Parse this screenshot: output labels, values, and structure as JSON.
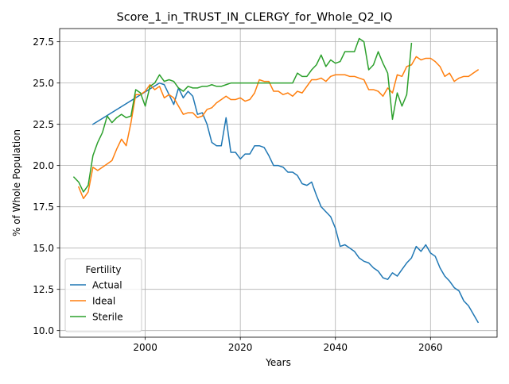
{
  "chart_data": {
    "type": "line",
    "title": "Score_1_in_TRUST_IN_CLERGY_for_Whole_Q2_IQ",
    "xlabel": "Years",
    "ylabel": "% of Whole Population",
    "xlim": [
      1982,
      2074
    ],
    "ylim": [
      9.6,
      28.3
    ],
    "x_ticks": [
      2000,
      2020,
      2040,
      2060
    ],
    "y_ticks": [
      10.0,
      12.5,
      15.0,
      17.5,
      20.0,
      22.5,
      25.0,
      27.5
    ],
    "x_tick_labels": [
      "2000",
      "2020",
      "2040",
      "2060"
    ],
    "y_tick_labels": [
      "10.0",
      "12.5",
      "15.0",
      "17.5",
      "20.0",
      "22.5",
      "25.0",
      "27.5"
    ],
    "grid": true,
    "legend": {
      "title": "Fertility",
      "placement": "lower-left"
    },
    "series": [
      {
        "name": "Actual",
        "color": "#1f77b4",
        "points": [
          [
            1989,
            22.5
          ],
          [
            2003,
            25.0
          ],
          [
            2004,
            24.9
          ],
          [
            2005,
            24.3
          ],
          [
            2006,
            23.7
          ],
          [
            2007,
            24.7
          ],
          [
            2008,
            24.1
          ],
          [
            2009,
            24.5
          ],
          [
            2010,
            24.2
          ],
          [
            2011,
            23.1
          ],
          [
            2012,
            23.2
          ],
          [
            2013,
            22.5
          ],
          [
            2014,
            21.4
          ],
          [
            2015,
            21.2
          ],
          [
            2016,
            21.2
          ],
          [
            2017,
            22.9
          ],
          [
            2018,
            20.8
          ],
          [
            2019,
            20.8
          ],
          [
            2020,
            20.4
          ],
          [
            2021,
            20.7
          ],
          [
            2022,
            20.7
          ],
          [
            2023,
            21.2
          ],
          [
            2024,
            21.2
          ],
          [
            2025,
            21.1
          ],
          [
            2026,
            20.6
          ],
          [
            2027,
            20.0
          ],
          [
            2028,
            20.0
          ],
          [
            2029,
            19.9
          ],
          [
            2030,
            19.6
          ],
          [
            2031,
            19.6
          ],
          [
            2032,
            19.4
          ],
          [
            2033,
            18.9
          ],
          [
            2034,
            18.8
          ],
          [
            2035,
            19.0
          ],
          [
            2036,
            18.2
          ],
          [
            2037,
            17.5
          ],
          [
            2038,
            17.2
          ],
          [
            2039,
            16.9
          ],
          [
            2040,
            16.2
          ],
          [
            2041,
            15.1
          ],
          [
            2042,
            15.2
          ],
          [
            2043,
            15.0
          ],
          [
            2044,
            14.8
          ],
          [
            2045,
            14.4
          ],
          [
            2046,
            14.2
          ],
          [
            2047,
            14.1
          ],
          [
            2048,
            13.8
          ],
          [
            2049,
            13.6
          ],
          [
            2050,
            13.2
          ],
          [
            2051,
            13.1
          ],
          [
            2052,
            13.5
          ],
          [
            2053,
            13.3
          ],
          [
            2054,
            13.7
          ],
          [
            2055,
            14.1
          ],
          [
            2056,
            14.4
          ],
          [
            2057,
            15.1
          ],
          [
            2058,
            14.8
          ],
          [
            2059,
            15.2
          ],
          [
            2060,
            14.7
          ],
          [
            2061,
            14.5
          ],
          [
            2062,
            13.8
          ],
          [
            2063,
            13.3
          ],
          [
            2064,
            13.0
          ],
          [
            2065,
            12.6
          ],
          [
            2066,
            12.4
          ],
          [
            2067,
            11.8
          ],
          [
            2068,
            11.5
          ],
          [
            2069,
            11.0
          ],
          [
            2070,
            10.5
          ]
        ]
      },
      {
        "name": "Ideal",
        "color": "#ff7f0e",
        "points": [
          [
            1986,
            18.7
          ],
          [
            1987,
            18.0
          ],
          [
            1988,
            18.4
          ],
          [
            1989,
            19.9
          ],
          [
            1990,
            19.7
          ],
          [
            1991,
            19.9
          ],
          [
            1992,
            20.1
          ],
          [
            1993,
            20.3
          ],
          [
            1994,
            21.0
          ],
          [
            1995,
            21.6
          ],
          [
            1996,
            21.2
          ],
          [
            1997,
            22.6
          ],
          [
            1998,
            24.3
          ],
          [
            1999,
            24.3
          ],
          [
            2000,
            24.5
          ],
          [
            2001,
            24.9
          ],
          [
            2002,
            24.6
          ],
          [
            2003,
            24.8
          ],
          [
            2004,
            24.1
          ],
          [
            2005,
            24.3
          ],
          [
            2006,
            24.1
          ],
          [
            2007,
            23.6
          ],
          [
            2008,
            23.1
          ],
          [
            2009,
            23.2
          ],
          [
            2010,
            23.2
          ],
          [
            2011,
            22.9
          ],
          [
            2012,
            23.0
          ],
          [
            2013,
            23.4
          ],
          [
            2014,
            23.5
          ],
          [
            2015,
            23.8
          ],
          [
            2016,
            24.0
          ],
          [
            2017,
            24.2
          ],
          [
            2018,
            24.0
          ],
          [
            2019,
            24.0
          ],
          [
            2020,
            24.1
          ],
          [
            2021,
            23.9
          ],
          [
            2022,
            24.0
          ],
          [
            2023,
            24.4
          ],
          [
            2024,
            25.2
          ],
          [
            2025,
            25.1
          ],
          [
            2026,
            25.1
          ],
          [
            2027,
            24.5
          ],
          [
            2028,
            24.5
          ],
          [
            2029,
            24.3
          ],
          [
            2030,
            24.4
          ],
          [
            2031,
            24.2
          ],
          [
            2032,
            24.5
          ],
          [
            2033,
            24.4
          ],
          [
            2034,
            24.8
          ],
          [
            2035,
            25.2
          ],
          [
            2036,
            25.2
          ],
          [
            2037,
            25.3
          ],
          [
            2038,
            25.1
          ],
          [
            2039,
            25.4
          ],
          [
            2040,
            25.5
          ],
          [
            2041,
            25.5
          ],
          [
            2042,
            25.5
          ],
          [
            2043,
            25.4
          ],
          [
            2044,
            25.4
          ],
          [
            2045,
            25.3
          ],
          [
            2046,
            25.2
          ],
          [
            2047,
            24.6
          ],
          [
            2048,
            24.6
          ],
          [
            2049,
            24.5
          ],
          [
            2050,
            24.2
          ],
          [
            2051,
            24.7
          ],
          [
            2052,
            24.4
          ],
          [
            2053,
            25.5
          ],
          [
            2054,
            25.4
          ],
          [
            2055,
            26.0
          ],
          [
            2056,
            26.1
          ],
          [
            2057,
            26.6
          ],
          [
            2058,
            26.4
          ],
          [
            2059,
            26.5
          ],
          [
            2060,
            26.5
          ],
          [
            2061,
            26.3
          ],
          [
            2062,
            26.0
          ],
          [
            2063,
            25.4
          ],
          [
            2064,
            25.6
          ],
          [
            2065,
            25.1
          ],
          [
            2066,
            25.3
          ],
          [
            2067,
            25.4
          ],
          [
            2068,
            25.4
          ],
          [
            2069,
            25.6
          ],
          [
            2070,
            25.8
          ]
        ]
      },
      {
        "name": "Sterile",
        "color": "#2ca02c",
        "points": [
          [
            1985,
            19.3
          ],
          [
            1986,
            19.0
          ],
          [
            1987,
            18.4
          ],
          [
            1988,
            18.8
          ],
          [
            1989,
            20.6
          ],
          [
            1990,
            21.4
          ],
          [
            1991,
            22.0
          ],
          [
            1992,
            23.0
          ],
          [
            1993,
            22.6
          ],
          [
            1994,
            22.9
          ],
          [
            1995,
            23.1
          ],
          [
            1996,
            22.9
          ],
          [
            1997,
            23.0
          ],
          [
            1998,
            24.6
          ],
          [
            1999,
            24.4
          ],
          [
            2000,
            23.6
          ],
          [
            2001,
            24.8
          ],
          [
            2002,
            25.0
          ],
          [
            2003,
            25.5
          ],
          [
            2004,
            25.1
          ],
          [
            2005,
            25.2
          ],
          [
            2006,
            25.1
          ],
          [
            2007,
            24.7
          ],
          [
            2008,
            24.5
          ],
          [
            2009,
            24.8
          ],
          [
            2010,
            24.7
          ],
          [
            2011,
            24.7
          ],
          [
            2012,
            24.8
          ],
          [
            2013,
            24.8
          ],
          [
            2014,
            24.9
          ],
          [
            2015,
            24.8
          ],
          [
            2016,
            24.8
          ],
          [
            2017,
            24.9
          ],
          [
            2018,
            25.0
          ],
          [
            2019,
            25.0
          ],
          [
            2020,
            25.0
          ],
          [
            2021,
            25.0
          ],
          [
            2022,
            25.0
          ],
          [
            2023,
            25.0
          ],
          [
            2024,
            25.0
          ],
          [
            2025,
            25.0
          ],
          [
            2026,
            25.0
          ],
          [
            2027,
            25.0
          ],
          [
            2028,
            25.0
          ],
          [
            2029,
            25.0
          ],
          [
            2030,
            25.0
          ],
          [
            2031,
            25.0
          ],
          [
            2032,
            25.6
          ],
          [
            2033,
            25.4
          ],
          [
            2034,
            25.4
          ],
          [
            2035,
            25.8
          ],
          [
            2036,
            26.1
          ],
          [
            2037,
            26.7
          ],
          [
            2038,
            26.0
          ],
          [
            2039,
            26.4
          ],
          [
            2040,
            26.2
          ],
          [
            2041,
            26.3
          ],
          [
            2042,
            26.9
          ],
          [
            2043,
            26.9
          ],
          [
            2044,
            26.9
          ],
          [
            2045,
            27.7
          ],
          [
            2046,
            27.5
          ],
          [
            2047,
            25.8
          ],
          [
            2048,
            26.1
          ],
          [
            2049,
            26.9
          ],
          [
            2050,
            26.2
          ],
          [
            2051,
            25.6
          ],
          [
            2052,
            22.8
          ],
          [
            2053,
            24.4
          ],
          [
            2054,
            23.6
          ],
          [
            2055,
            24.3
          ],
          [
            2056,
            27.4
          ]
        ]
      }
    ]
  }
}
